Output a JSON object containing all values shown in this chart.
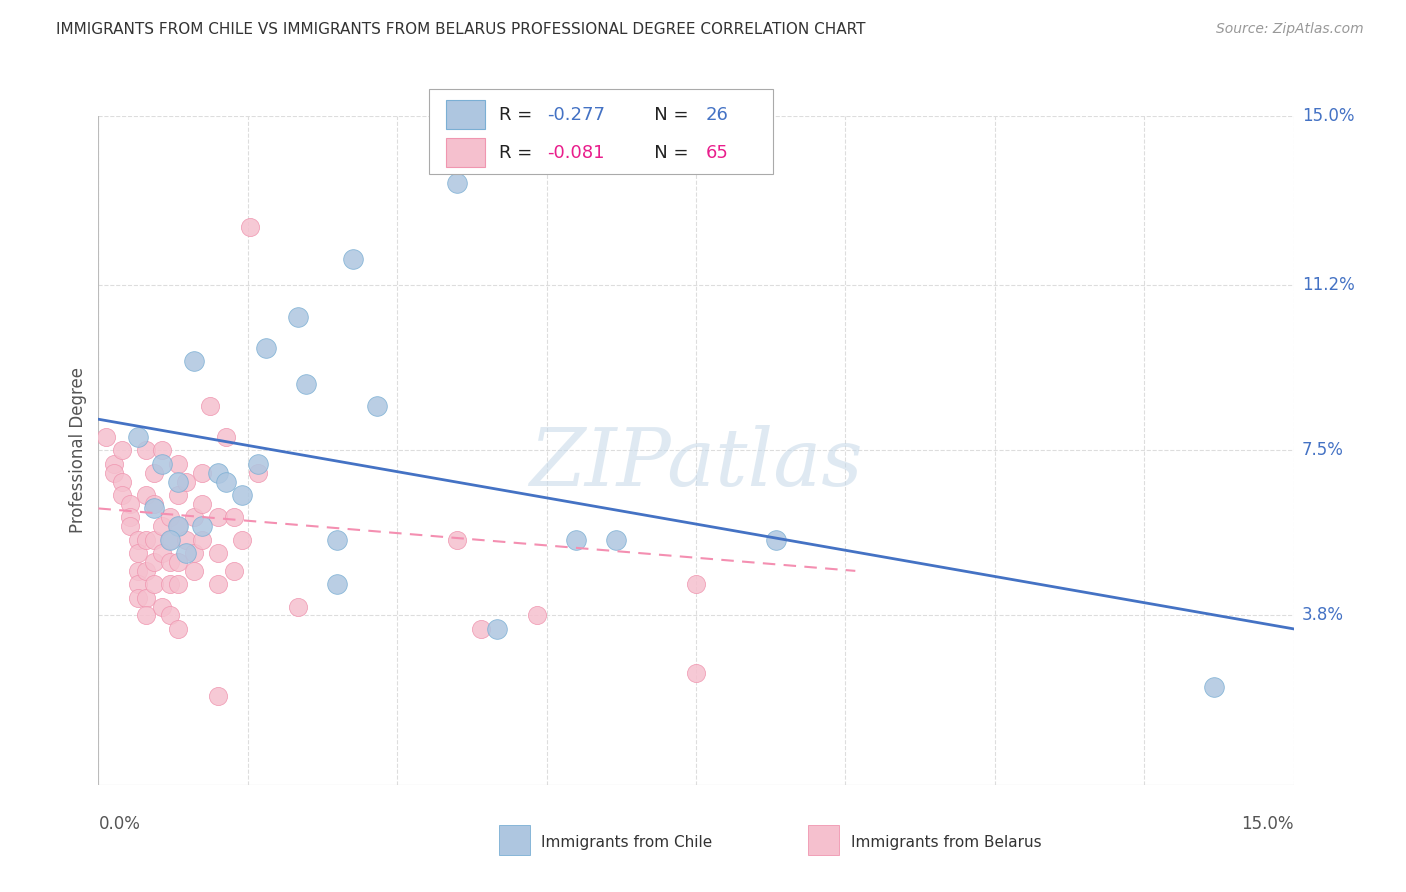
{
  "title": "IMMIGRANTS FROM CHILE VS IMMIGRANTS FROM BELARUS PROFESSIONAL DEGREE CORRELATION CHART",
  "source": "Source: ZipAtlas.com",
  "ylabel": "Professional Degree",
  "y_ticks": [
    3.8,
    7.5,
    11.2,
    15.0
  ],
  "y_tick_labels": [
    "3.8%",
    "7.5%",
    "11.2%",
    "15.0%"
  ],
  "xmin": 0.0,
  "xmax": 15.0,
  "ymin": 0.0,
  "ymax": 15.0,
  "legend_r_chile": "-0.277",
  "legend_n_chile": "26",
  "legend_r_belarus": "-0.081",
  "legend_n_belarus": "65",
  "color_chile_fill": "#AEC6E0",
  "color_chile_edge": "#7BAFD4",
  "color_belarus_fill": "#F5C0CE",
  "color_belarus_edge": "#F096B0",
  "color_chile_line": "#4472C4",
  "color_belarus_line": "#F48FB1",
  "color_rval_chile": "#4472C4",
  "color_rval_belarus": "#E91E8C",
  "watermark_color": "#C5D8E8",
  "chile_scatter": [
    [
      0.5,
      7.8
    ],
    [
      0.8,
      7.2
    ],
    [
      1.0,
      6.8
    ],
    [
      1.2,
      9.5
    ],
    [
      1.5,
      7.0
    ],
    [
      1.6,
      6.8
    ],
    [
      2.1,
      9.8
    ],
    [
      2.5,
      10.5
    ],
    [
      2.6,
      9.0
    ],
    [
      3.2,
      11.8
    ],
    [
      3.5,
      8.5
    ],
    [
      4.5,
      13.5
    ],
    [
      1.0,
      5.8
    ],
    [
      1.3,
      5.8
    ],
    [
      1.8,
      6.5
    ],
    [
      2.0,
      7.2
    ],
    [
      0.7,
      6.2
    ],
    [
      0.9,
      5.5
    ],
    [
      1.1,
      5.2
    ],
    [
      3.0,
      5.5
    ],
    [
      3.0,
      4.5
    ],
    [
      5.0,
      3.5
    ],
    [
      6.0,
      5.5
    ],
    [
      6.5,
      5.5
    ],
    [
      8.5,
      5.5
    ],
    [
      14.0,
      2.2
    ]
  ],
  "belarus_scatter": [
    [
      0.1,
      7.8
    ],
    [
      0.2,
      7.2
    ],
    [
      0.2,
      7.0
    ],
    [
      0.3,
      7.5
    ],
    [
      0.3,
      6.8
    ],
    [
      0.3,
      6.5
    ],
    [
      0.4,
      6.3
    ],
    [
      0.4,
      6.0
    ],
    [
      0.4,
      5.8
    ],
    [
      0.5,
      5.5
    ],
    [
      0.5,
      5.2
    ],
    [
      0.5,
      4.8
    ],
    [
      0.5,
      4.5
    ],
    [
      0.5,
      4.2
    ],
    [
      0.6,
      7.5
    ],
    [
      0.6,
      6.5
    ],
    [
      0.6,
      5.5
    ],
    [
      0.6,
      4.8
    ],
    [
      0.6,
      4.2
    ],
    [
      0.6,
      3.8
    ],
    [
      0.7,
      7.0
    ],
    [
      0.7,
      6.3
    ],
    [
      0.7,
      5.5
    ],
    [
      0.7,
      5.0
    ],
    [
      0.7,
      4.5
    ],
    [
      0.8,
      7.5
    ],
    [
      0.8,
      5.8
    ],
    [
      0.8,
      5.2
    ],
    [
      0.8,
      4.0
    ],
    [
      0.9,
      6.0
    ],
    [
      0.9,
      5.5
    ],
    [
      0.9,
      5.0
    ],
    [
      0.9,
      4.5
    ],
    [
      0.9,
      3.8
    ],
    [
      1.0,
      7.2
    ],
    [
      1.0,
      6.5
    ],
    [
      1.0,
      5.8
    ],
    [
      1.0,
      5.0
    ],
    [
      1.0,
      4.5
    ],
    [
      1.0,
      3.5
    ],
    [
      1.1,
      6.8
    ],
    [
      1.1,
      5.5
    ],
    [
      1.2,
      6.0
    ],
    [
      1.2,
      5.2
    ],
    [
      1.2,
      4.8
    ],
    [
      1.3,
      7.0
    ],
    [
      1.3,
      6.3
    ],
    [
      1.3,
      5.5
    ],
    [
      1.4,
      8.5
    ],
    [
      1.5,
      6.0
    ],
    [
      1.5,
      5.2
    ],
    [
      1.5,
      4.5
    ],
    [
      1.6,
      7.8
    ],
    [
      1.7,
      6.0
    ],
    [
      1.7,
      4.8
    ],
    [
      1.8,
      5.5
    ],
    [
      1.9,
      12.5
    ],
    [
      2.0,
      7.0
    ],
    [
      2.5,
      4.0
    ],
    [
      4.5,
      5.5
    ],
    [
      4.8,
      3.5
    ],
    [
      5.5,
      3.8
    ],
    [
      7.5,
      2.5
    ],
    [
      7.5,
      4.5
    ],
    [
      1.5,
      2.0
    ]
  ],
  "chile_line_x": [
    0.0,
    15.0
  ],
  "chile_line_y": [
    8.2,
    3.5
  ],
  "belarus_line_x": [
    0.0,
    9.5
  ],
  "belarus_line_y": [
    6.2,
    4.8
  ],
  "x_tick_positions": [
    0.0,
    1.875,
    3.75,
    5.625,
    7.5,
    9.375,
    11.25,
    13.125,
    15.0
  ]
}
